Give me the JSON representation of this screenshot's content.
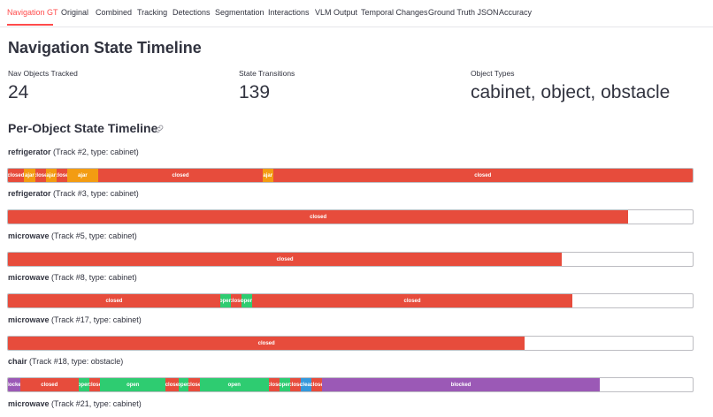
{
  "tabs": [
    {
      "label": "Navigation GT",
      "active": true
    },
    {
      "label": "Original",
      "active": false
    },
    {
      "label": "Combined",
      "active": false
    },
    {
      "label": "Tracking",
      "active": false
    },
    {
      "label": "Detections",
      "active": false
    },
    {
      "label": "Segmentation",
      "active": false
    },
    {
      "label": "Interactions",
      "active": false
    },
    {
      "label": "VLM Output",
      "active": false
    },
    {
      "label": "Temporal Changes",
      "active": false
    },
    {
      "label": "Ground Truth JSON",
      "active": false
    },
    {
      "label": "Accuracy",
      "active": false
    }
  ],
  "page": {
    "title": "Navigation State Timeline"
  },
  "metrics": [
    {
      "label": "Nav Objects Tracked",
      "value": "24"
    },
    {
      "label": "State Transitions",
      "value": "139"
    },
    {
      "label": "Object Types",
      "value": "cabinet, object, obstacle"
    }
  ],
  "section": {
    "title": "Per-Object State Timeline"
  },
  "colors": {
    "closed": "#e74c3c",
    "ajar": "#f39c12",
    "open": "#2ecc71",
    "blocked": "#9b59b6",
    "clear": "#3498db",
    "accent": "#ff4b4b"
  },
  "objects": [
    {
      "name": "refrigerator",
      "meta": "(Track #2, type: cabinet)",
      "segments": [
        {
          "state": "closed",
          "label": "closed",
          "start": 0.0,
          "end": 0.023
        },
        {
          "state": "ajar",
          "label": "ajar",
          "start": 0.023,
          "end": 0.04
        },
        {
          "state": "closed",
          "label": "close",
          "start": 0.04,
          "end": 0.055
        },
        {
          "state": "ajar",
          "label": "ajar",
          "start": 0.055,
          "end": 0.071
        },
        {
          "state": "closed",
          "label": "close",
          "start": 0.071,
          "end": 0.086
        },
        {
          "state": "ajar",
          "label": "ajar",
          "start": 0.086,
          "end": 0.132
        },
        {
          "state": "closed",
          "label": "closed",
          "start": 0.132,
          "end": 0.372
        },
        {
          "state": "ajar",
          "label": "ajar",
          "start": 0.372,
          "end": 0.387
        },
        {
          "state": "closed",
          "label": "closed",
          "start": 0.387,
          "end": 1.0
        }
      ]
    },
    {
      "name": "refrigerator",
      "meta": "(Track #3, type: cabinet)",
      "segments": [
        {
          "state": "closed",
          "label": "closed",
          "start": 0.0,
          "end": 0.906
        }
      ]
    },
    {
      "name": "microwave",
      "meta": "(Track #5, type: cabinet)",
      "segments": [
        {
          "state": "closed",
          "label": "closed",
          "start": 0.0,
          "end": 0.809
        }
      ]
    },
    {
      "name": "microwave",
      "meta": "(Track #8, type: cabinet)",
      "segments": [
        {
          "state": "closed",
          "label": "closed",
          "start": 0.0,
          "end": 0.31
        },
        {
          "state": "open",
          "label": "open",
          "start": 0.31,
          "end": 0.326
        },
        {
          "state": "closed",
          "label": "close",
          "start": 0.326,
          "end": 0.341
        },
        {
          "state": "open",
          "label": "open",
          "start": 0.341,
          "end": 0.357
        },
        {
          "state": "closed",
          "label": "closed",
          "start": 0.357,
          "end": 0.824
        }
      ]
    },
    {
      "name": "microwave",
      "meta": "(Track #17, type: cabinet)",
      "segments": [
        {
          "state": "closed",
          "label": "closed",
          "start": 0.0,
          "end": 0.755
        }
      ]
    },
    {
      "name": "chair",
      "meta": "(Track #18, type: obstacle)",
      "segments": [
        {
          "state": "blocked",
          "label": "blocked",
          "start": 0.0,
          "end": 0.018
        },
        {
          "state": "closed",
          "label": "closed",
          "start": 0.018,
          "end": 0.103
        },
        {
          "state": "open",
          "label": "open",
          "start": 0.103,
          "end": 0.119
        },
        {
          "state": "closed",
          "label": "close",
          "start": 0.119,
          "end": 0.135
        },
        {
          "state": "open",
          "label": "open",
          "start": 0.135,
          "end": 0.23
        },
        {
          "state": "closed",
          "label": "close",
          "start": 0.23,
          "end": 0.249
        },
        {
          "state": "open",
          "label": "open",
          "start": 0.249,
          "end": 0.264
        },
        {
          "state": "closed",
          "label": "close",
          "start": 0.264,
          "end": 0.28
        },
        {
          "state": "open",
          "label": "open",
          "start": 0.28,
          "end": 0.381
        },
        {
          "state": "closed",
          "label": "close",
          "start": 0.381,
          "end": 0.397
        },
        {
          "state": "open",
          "label": "open",
          "start": 0.397,
          "end": 0.412
        },
        {
          "state": "closed",
          "label": "close",
          "start": 0.412,
          "end": 0.428
        },
        {
          "state": "clear",
          "label": "clear",
          "start": 0.428,
          "end": 0.443
        },
        {
          "state": "closed",
          "label": "close",
          "start": 0.443,
          "end": 0.459
        },
        {
          "state": "blocked",
          "label": "blocked",
          "start": 0.459,
          "end": 0.864
        }
      ]
    },
    {
      "name": "microwave",
      "meta": "(Track #21, type: cabinet)",
      "segments": []
    }
  ]
}
